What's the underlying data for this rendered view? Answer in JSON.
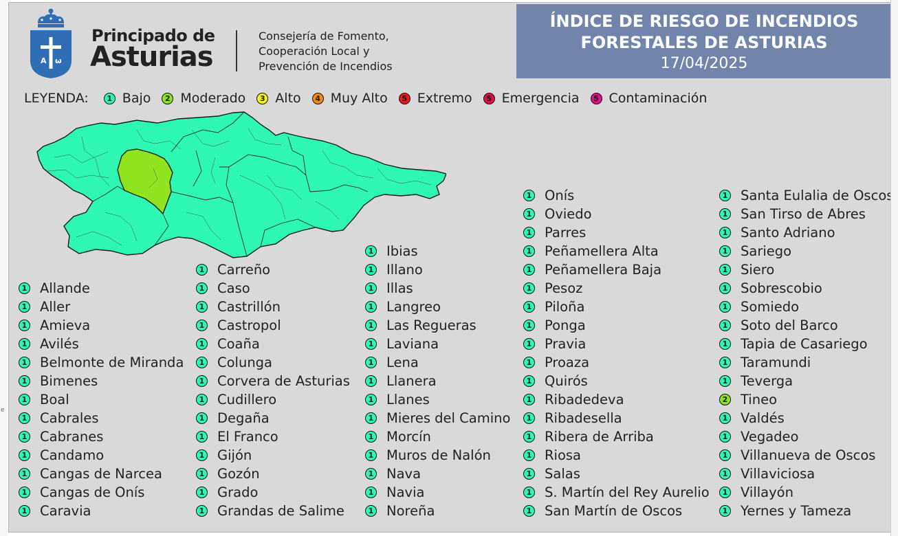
{
  "header": {
    "brand_line1": "Principado de",
    "brand_line2": "Asturias",
    "department_lines": [
      "Consejería de Fomento,",
      "Cooperación Local y",
      "Prevención de Incendios"
    ],
    "title_line1": "ÍNDICE DE RIESGO DE INCENDIOS",
    "title_line2": "FORESTALES DE ASTURIAS",
    "date": "17/04/2025",
    "title_bg": "#7284ab"
  },
  "legend": {
    "label": "LEYENDA:",
    "items": [
      {
        "level": "1",
        "label": "Bajo",
        "color": "#2ef7b3"
      },
      {
        "level": "2",
        "label": "Moderado",
        "color": "#8fe31f"
      },
      {
        "level": "3",
        "label": "Alto",
        "color": "#f4f21a"
      },
      {
        "level": "4",
        "label": "Muy Alto",
        "color": "#f58a10"
      },
      {
        "level": "5",
        "label": "Extremo",
        "color": "#f0171c"
      },
      {
        "level": "5",
        "label": "Emergencia",
        "color": "#e0104a"
      },
      {
        "level": "5",
        "label": "Contaminación",
        "color": "#e0108a"
      }
    ]
  },
  "columns": [
    [
      {
        "name": "Allande",
        "level": "1"
      },
      {
        "name": "Aller",
        "level": "1"
      },
      {
        "name": "Amieva",
        "level": "1"
      },
      {
        "name": "Avilés",
        "level": "1"
      },
      {
        "name": "Belmonte de Miranda",
        "level": "1"
      },
      {
        "name": "Bimenes",
        "level": "1"
      },
      {
        "name": "Boal",
        "level": "1"
      },
      {
        "name": "Cabrales",
        "level": "1"
      },
      {
        "name": "Cabranes",
        "level": "1"
      },
      {
        "name": "Candamo",
        "level": "1"
      },
      {
        "name": "Cangas de Narcea",
        "level": "1"
      },
      {
        "name": "Cangas de Onís",
        "level": "1"
      },
      {
        "name": "Caravia",
        "level": "1"
      }
    ],
    [
      {
        "name": "Carreño",
        "level": "1"
      },
      {
        "name": "Caso",
        "level": "1"
      },
      {
        "name": "Castrillón",
        "level": "1"
      },
      {
        "name": "Castropol",
        "level": "1"
      },
      {
        "name": "Coaña",
        "level": "1"
      },
      {
        "name": "Colunga",
        "level": "1"
      },
      {
        "name": "Corvera de Asturias",
        "level": "1"
      },
      {
        "name": "Cudillero",
        "level": "1"
      },
      {
        "name": "Degaña",
        "level": "1"
      },
      {
        "name": "El Franco",
        "level": "1"
      },
      {
        "name": "Gijón",
        "level": "1"
      },
      {
        "name": "Gozón",
        "level": "1"
      },
      {
        "name": "Grado",
        "level": "1"
      },
      {
        "name": "Grandas de Salime",
        "level": "1"
      }
    ],
    [
      {
        "name": "Ibias",
        "level": "1"
      },
      {
        "name": "Illano",
        "level": "1"
      },
      {
        "name": "Illas",
        "level": "1"
      },
      {
        "name": "Langreo",
        "level": "1"
      },
      {
        "name": "Las Regueras",
        "level": "1"
      },
      {
        "name": "Laviana",
        "level": "1"
      },
      {
        "name": "Lena",
        "level": "1"
      },
      {
        "name": "Llanera",
        "level": "1"
      },
      {
        "name": "Llanes",
        "level": "1"
      },
      {
        "name": "Mieres del Camino",
        "level": "1"
      },
      {
        "name": "Morcín",
        "level": "1"
      },
      {
        "name": "Muros de Nalón",
        "level": "1"
      },
      {
        "name": "Nava",
        "level": "1"
      },
      {
        "name": "Navia",
        "level": "1"
      },
      {
        "name": "Noreña",
        "level": "1"
      }
    ],
    [
      {
        "name": "Onís",
        "level": "1"
      },
      {
        "name": "Oviedo",
        "level": "1"
      },
      {
        "name": "Parres",
        "level": "1"
      },
      {
        "name": "Peñamellera Alta",
        "level": "1"
      },
      {
        "name": "Peñamellera Baja",
        "level": "1"
      },
      {
        "name": "Pesoz",
        "level": "1"
      },
      {
        "name": "Piloña",
        "level": "1"
      },
      {
        "name": "Ponga",
        "level": "1"
      },
      {
        "name": "Pravia",
        "level": "1"
      },
      {
        "name": "Proaza",
        "level": "1"
      },
      {
        "name": "Quirós",
        "level": "1"
      },
      {
        "name": "Ribadedeva",
        "level": "1"
      },
      {
        "name": "Ribadesella",
        "level": "1"
      },
      {
        "name": "Ribera de Arriba",
        "level": "1"
      },
      {
        "name": "Riosa",
        "level": "1"
      },
      {
        "name": "Salas",
        "level": "1"
      },
      {
        "name": "S. Martín del Rey Aurelio",
        "level": "1"
      },
      {
        "name": "San Martín de Oscos",
        "level": "1"
      }
    ],
    [
      {
        "name": "Santa Eulalia de Oscos",
        "level": "1"
      },
      {
        "name": "San Tirso de Abres",
        "level": "1"
      },
      {
        "name": "Santo Adriano",
        "level": "1"
      },
      {
        "name": "Sariego",
        "level": "1"
      },
      {
        "name": "Siero",
        "level": "1"
      },
      {
        "name": "Sobrescobio",
        "level": "1"
      },
      {
        "name": "Somiedo",
        "level": "1"
      },
      {
        "name": "Soto del Barco",
        "level": "1"
      },
      {
        "name": "Tapia de Casariego",
        "level": "1"
      },
      {
        "name": "Taramundi",
        "level": "1"
      },
      {
        "name": "Teverga",
        "level": "1"
      },
      {
        "name": "Tineo",
        "level": "2"
      },
      {
        "name": "Valdés",
        "level": "1"
      },
      {
        "name": "Vegadeo",
        "level": "1"
      },
      {
        "name": "Villanueva de Oscos",
        "level": "1"
      },
      {
        "name": "Villaviciosa",
        "level": "1"
      },
      {
        "name": "Villayón",
        "level": "1"
      },
      {
        "name": "Yernes y Tameza",
        "level": "1"
      }
    ]
  ],
  "map": {
    "region_colors": {
      "bajo": "#2ef7b3",
      "moderado": "#8fe31f"
    },
    "highlighted_municipality": "Tineo"
  },
  "colors": {
    "panel_bg": "#d9d9d9",
    "crest_blue": "#2f6db5"
  }
}
